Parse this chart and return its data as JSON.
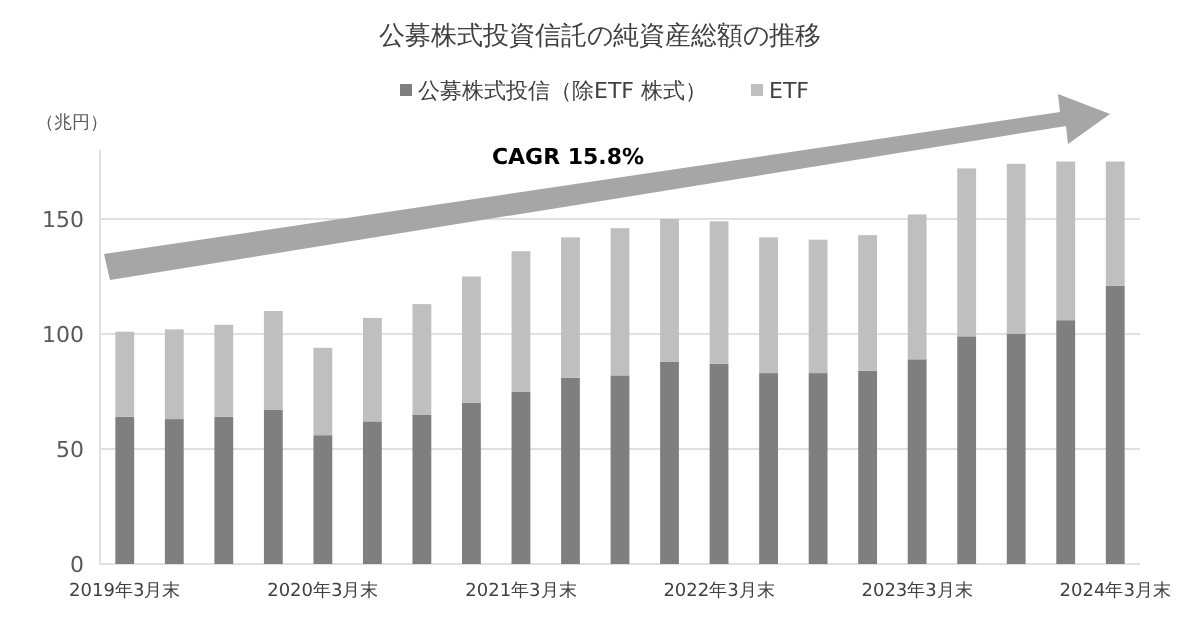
{
  "chart_data": {
    "type": "bar",
    "title": "公募株式投資信託の純資産総額の推移",
    "ylabel": "（兆円）",
    "categories": [
      "2019年3月末",
      null,
      null,
      null,
      "2020年3月末",
      null,
      null,
      null,
      "2021年3月末",
      null,
      null,
      null,
      "2022年3月末",
      null,
      null,
      null,
      "2023年3月末",
      null,
      null,
      null,
      "2024年3月末"
    ],
    "stacked": true,
    "series": [
      {
        "name": "公募株式投信（除ETF 株式）",
        "color": "#7f7f7f",
        "values": [
          64,
          63,
          64,
          67,
          56,
          62,
          65,
          70,
          75,
          81,
          82,
          88,
          87,
          83,
          83,
          84,
          89,
          99,
          100,
          106,
          121
        ]
      },
      {
        "name": "ETF",
        "color": "#bfbfbf",
        "values": [
          37,
          39,
          40,
          43,
          38,
          45,
          48,
          55,
          61,
          61,
          64,
          62,
          62,
          59,
          58,
          59,
          63,
          73,
          74,
          69,
          54
        ]
      }
    ],
    "ylim": [
      0,
      180
    ],
    "yticks": [
      0,
      50,
      100,
      150
    ],
    "grid": "y",
    "legend": "top",
    "annotations": [
      "CAGR 15.8%"
    ]
  }
}
